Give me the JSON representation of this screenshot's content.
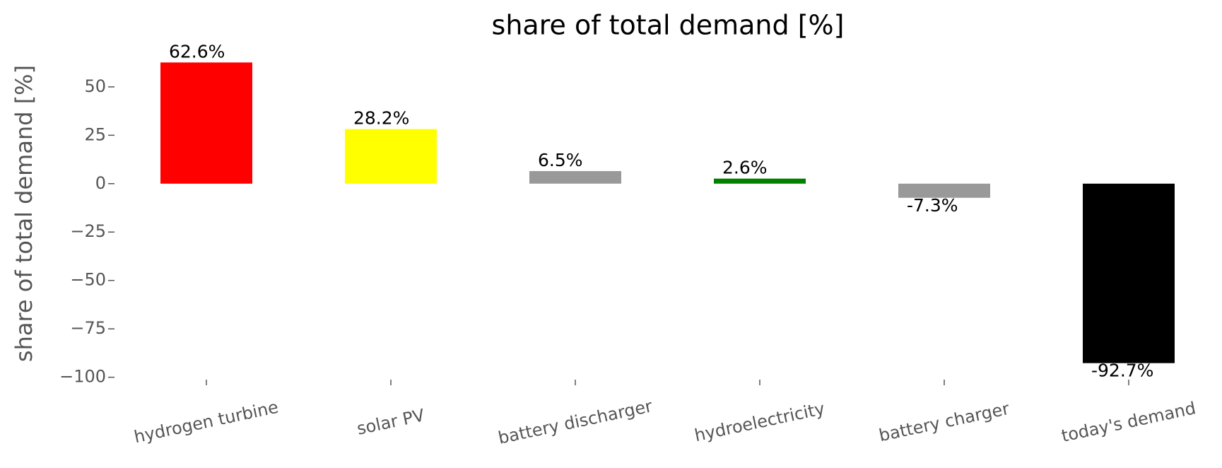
{
  "chart_data": {
    "type": "bar",
    "title": "share of total demand [%]",
    "y_label": "share of total demand [%]",
    "categories": [
      "hydrogen turbine",
      "solar PV",
      "battery discharger",
      "hydroelectricity",
      "battery charger",
      "today's demand"
    ],
    "values": [
      62.6,
      28.2,
      6.5,
      2.6,
      -7.3,
      -92.7
    ],
    "value_labels": [
      "62.6%",
      "28.2%",
      "6.5%",
      "2.6%",
      "-7.3%",
      "-92.7%"
    ],
    "colors": [
      "#ff0000",
      "#ffff00",
      "#999999",
      "#008000",
      "#999999",
      "#000000"
    ],
    "ylim": [
      -100.5,
      70.4
    ],
    "yticks": [
      50,
      25,
      0,
      {
        "value": -25,
        "label": "−25"
      },
      {
        "value": -50,
        "label": "−50"
      },
      {
        "value": -75,
        "label": "−75"
      },
      {
        "value": -100,
        "label": "−100"
      }
    ],
    "grid": false
  }
}
